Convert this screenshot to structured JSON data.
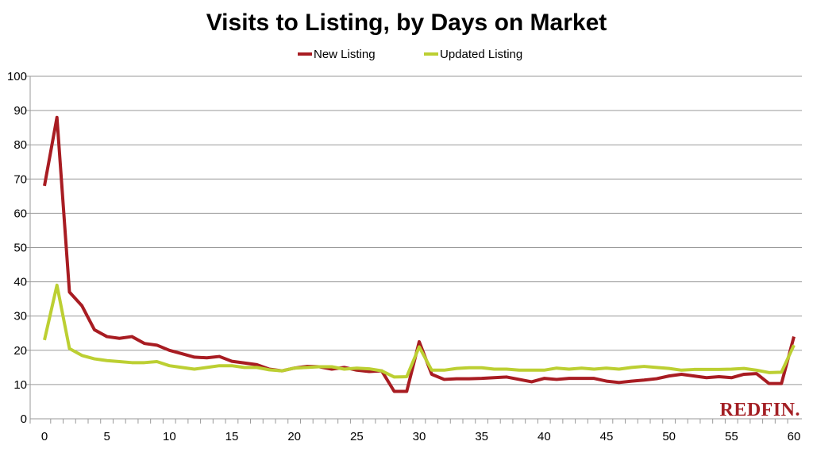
{
  "chart_data": {
    "type": "line",
    "title": "Visits to Listing, by Days on Market",
    "xlabel": "",
    "ylabel": "",
    "xlim": [
      0,
      60
    ],
    "ylim": [
      0,
      100
    ],
    "x_ticks": [
      0,
      5,
      10,
      15,
      20,
      25,
      30,
      35,
      40,
      45,
      50,
      55,
      60
    ],
    "y_ticks": [
      0,
      10,
      20,
      30,
      40,
      50,
      60,
      70,
      80,
      90,
      100
    ],
    "grid": "horizontal",
    "legend_position": "top-center",
    "series": [
      {
        "name": "New Listing",
        "color": "#a81c22",
        "values": [
          68,
          88,
          37,
          33,
          26,
          24,
          23.5,
          24,
          22,
          21.5,
          20,
          19,
          18,
          17.8,
          18.2,
          16.8,
          16.3,
          15.8,
          14.5,
          14,
          14.8,
          15.3,
          15.2,
          14.5,
          15,
          14.2,
          13.8,
          14,
          8,
          8,
          22.5,
          13,
          11.5,
          11.7,
          11.7,
          11.8,
          12,
          12.2,
          11.5,
          10.8,
          11.8,
          11.5,
          11.8,
          11.8,
          11.8,
          11,
          10.6,
          11,
          11.3,
          11.7,
          12.5,
          13,
          12.5,
          12,
          12.3,
          12,
          13,
          13.2,
          10.3,
          10.3,
          24
        ]
      },
      {
        "name": "Updated Listing",
        "color": "#bccf32",
        "values": [
          23,
          39,
          20.5,
          18.5,
          17.5,
          17,
          16.7,
          16.4,
          16.4,
          16.7,
          15.5,
          15,
          14.5,
          15,
          15.5,
          15.5,
          15,
          15,
          14.3,
          14,
          14.8,
          15,
          15.2,
          15.2,
          14.5,
          14.8,
          14.6,
          14,
          12.2,
          12.3,
          21,
          14.2,
          14.2,
          14.7,
          14.9,
          14.9,
          14.5,
          14.5,
          14.2,
          14.2,
          14.2,
          14.8,
          14.5,
          14.8,
          14.5,
          14.8,
          14.5,
          15,
          15.3,
          15,
          14.7,
          14.2,
          14.4,
          14.4,
          14.4,
          14.5,
          14.7,
          14.2,
          13.5,
          13.6,
          21.5
        ]
      }
    ]
  },
  "branding": {
    "logo_text": "REDFIN."
  }
}
